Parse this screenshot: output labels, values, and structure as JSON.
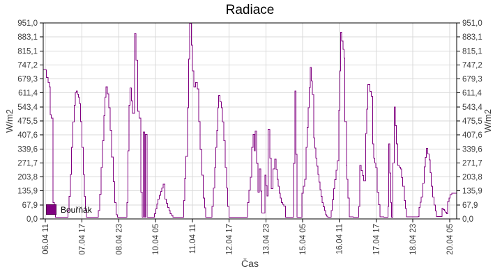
{
  "chart_data": {
    "type": "line",
    "title": "Radiace",
    "xlabel": "Čas",
    "ylabel_left": "W/m2",
    "ylabel_right": "W/m2",
    "line_style": "step",
    "grid": true,
    "colors": {
      "series": "#800080",
      "grid": "#d9d9d9",
      "axis": "#000000",
      "tick_text": "#3c3c3c"
    },
    "y_max": 951.0,
    "y_tick_labels": [
      "0,0",
      "67,9",
      "135,9",
      "203,8",
      "271,7",
      "339,6",
      "407,6",
      "475,5",
      "543,4",
      "611,4",
      "679,3",
      "747,2",
      "815,1",
      "883,1",
      "951,0"
    ],
    "x_range_hours": [
      9.3,
      346.8
    ],
    "x_ticks": [
      {
        "t": 11,
        "label": "06.04 11"
      },
      {
        "t": 41,
        "label": "07.04 17"
      },
      {
        "t": 71,
        "label": "08.04 23"
      },
      {
        "t": 101,
        "label": "10.04 05"
      },
      {
        "t": 131,
        "label": "11.04 11"
      },
      {
        "t": 161,
        "label": "12.04 17"
      },
      {
        "t": 191,
        "label": "13.04 23"
      },
      {
        "t": 221,
        "label": "15.04 05"
      },
      {
        "t": 251,
        "label": "16.04 11"
      },
      {
        "t": 281,
        "label": "17.04 17"
      },
      {
        "t": 311,
        "label": "18.04 23"
      },
      {
        "t": 341,
        "label": "20.04 05"
      }
    ],
    "legend": {
      "position": "bottom-left-inside"
    },
    "series": [
      {
        "name": "Bouřňák",
        "color": "#800080",
        "points": [
          [
            9.3,
            723
          ],
          [
            11.5,
            723
          ],
          [
            12,
            686
          ],
          [
            14.3,
            640
          ],
          [
            15,
            506
          ],
          [
            15.9,
            489
          ],
          [
            17.4,
            80
          ],
          [
            18.3,
            25
          ],
          [
            19.4,
            8
          ],
          [
            28.9,
            8
          ],
          [
            29.4,
            40
          ],
          [
            30.4,
            110
          ],
          [
            31.5,
            215
          ],
          [
            32.4,
            348
          ],
          [
            33.5,
            470
          ],
          [
            34.6,
            551
          ],
          [
            35.5,
            614
          ],
          [
            36.4,
            620
          ],
          [
            38,
            590
          ],
          [
            38.9,
            560
          ],
          [
            39.7,
            472
          ],
          [
            40.8,
            348
          ],
          [
            41.9,
            215
          ],
          [
            43,
            110
          ],
          [
            43.8,
            40
          ],
          [
            44.7,
            8
          ],
          [
            53.8,
            8
          ],
          [
            54.3,
            40
          ],
          [
            55.4,
            120
          ],
          [
            56.5,
            250
          ],
          [
            57.7,
            380
          ],
          [
            58.8,
            500
          ],
          [
            59.7,
            590
          ],
          [
            60.5,
            641
          ],
          [
            61.7,
            607
          ],
          [
            62.8,
            540
          ],
          [
            64,
            430
          ],
          [
            65.1,
            300
          ],
          [
            66.5,
            180
          ],
          [
            67.6,
            80
          ],
          [
            68.8,
            20
          ],
          [
            69.9,
            8
          ],
          [
            77.1,
            8
          ],
          [
            77.6,
            80
          ],
          [
            78.4,
            331
          ],
          [
            79.3,
            551
          ],
          [
            80.3,
            635
          ],
          [
            82.2,
            512
          ],
          [
            83.4,
            512
          ],
          [
            83.9,
            899
          ],
          [
            85.1,
            770
          ],
          [
            86.3,
            523
          ],
          [
            87.5,
            489
          ],
          [
            89,
            129
          ],
          [
            90.1,
            8
          ],
          [
            90.9,
            421
          ],
          [
            92,
            8
          ],
          [
            92.8,
            410
          ],
          [
            94,
            8
          ],
          [
            99.7,
            8
          ],
          [
            100.2,
            25
          ],
          [
            103,
            96
          ],
          [
            107.2,
            169
          ],
          [
            108.7,
            96
          ],
          [
            111,
            56
          ],
          [
            112.9,
            25
          ],
          [
            115.3,
            8
          ],
          [
            123.4,
            8
          ],
          [
            123.9,
            90
          ],
          [
            125.6,
            303
          ],
          [
            127,
            540
          ],
          [
            127.9,
            776
          ],
          [
            128.8,
            949
          ],
          [
            130.2,
            843
          ],
          [
            131.1,
            719
          ],
          [
            132.1,
            641
          ],
          [
            133.6,
            663
          ],
          [
            135,
            630
          ],
          [
            136.1,
            472
          ],
          [
            137.4,
            337
          ],
          [
            138.7,
            213
          ],
          [
            139.9,
            101
          ],
          [
            142,
            8
          ],
          [
            146.5,
            8
          ],
          [
            147,
            60
          ],
          [
            148.2,
            150
          ],
          [
            149.3,
            250
          ],
          [
            150.2,
            348
          ],
          [
            151,
            430
          ],
          [
            151.9,
            540
          ],
          [
            152.4,
            598
          ],
          [
            154.7,
            540
          ],
          [
            155.6,
            470
          ],
          [
            156.7,
            380
          ],
          [
            157.9,
            250
          ],
          [
            159,
            150
          ],
          [
            159.9,
            60
          ],
          [
            161,
            8
          ],
          [
            175.6,
            8
          ],
          [
            176.1,
            79
          ],
          [
            178.4,
            202
          ],
          [
            179.5,
            348
          ],
          [
            180.6,
            410
          ],
          [
            181.8,
            331
          ],
          [
            182.3,
            427
          ],
          [
            183.5,
            270
          ],
          [
            184.6,
            129
          ],
          [
            185.8,
            242
          ],
          [
            187.7,
            28
          ],
          [
            189.8,
            28
          ],
          [
            190.3,
            212
          ],
          [
            192,
            112
          ],
          [
            192.9,
            433
          ],
          [
            194.3,
            295
          ],
          [
            195.4,
            146
          ],
          [
            196.9,
            242
          ],
          [
            198.3,
            290
          ],
          [
            200.3,
            192
          ],
          [
            202,
            124
          ],
          [
            203.7,
            79
          ],
          [
            205.7,
            62
          ],
          [
            207.1,
            8
          ],
          [
            213.2,
            8
          ],
          [
            213.7,
            270
          ],
          [
            214.8,
            620
          ],
          [
            216.6,
            8
          ],
          [
            220,
            8
          ],
          [
            220.5,
            124
          ],
          [
            222.8,
            192
          ],
          [
            223.9,
            348
          ],
          [
            225.6,
            540
          ],
          [
            227.3,
            736
          ],
          [
            229,
            604
          ],
          [
            230.2,
            393
          ],
          [
            231.9,
            295
          ],
          [
            233.6,
            216
          ],
          [
            235.3,
            141
          ],
          [
            237,
            79
          ],
          [
            239.8,
            20
          ],
          [
            241.6,
            8
          ],
          [
            243.9,
            8
          ],
          [
            244.4,
            40
          ],
          [
            246.3,
            146
          ],
          [
            249.2,
            281
          ],
          [
            250.5,
            527
          ],
          [
            251.5,
            719
          ],
          [
            252.1,
            905
          ],
          [
            254.9,
            781
          ],
          [
            255.5,
            472
          ],
          [
            256.8,
            259
          ],
          [
            257.1,
            192
          ],
          [
            259.2,
            10
          ],
          [
            266.3,
            8
          ],
          [
            266.8,
            60
          ],
          [
            267.7,
            259
          ],
          [
            270.9,
            186
          ],
          [
            272.4,
            415
          ],
          [
            274.3,
            652
          ],
          [
            275.8,
            618
          ],
          [
            277.2,
            595
          ],
          [
            278.1,
            365
          ],
          [
            279.2,
            295
          ],
          [
            280.8,
            248
          ],
          [
            281.9,
            129
          ],
          [
            284.2,
            10
          ],
          [
            290.3,
            8
          ],
          [
            290.8,
            60
          ],
          [
            291.4,
            365
          ],
          [
            293.1,
            79
          ],
          [
            293.6,
            8
          ],
          [
            294.8,
            272
          ],
          [
            295.9,
            543
          ],
          [
            297.6,
            365
          ],
          [
            298.8,
            259
          ],
          [
            301,
            242
          ],
          [
            302.7,
            158
          ],
          [
            304.2,
            90
          ],
          [
            305.9,
            10
          ],
          [
            315.6,
            11
          ],
          [
            316.1,
            56
          ],
          [
            317.8,
            107
          ],
          [
            319.2,
            174
          ],
          [
            320.4,
            253
          ],
          [
            321.2,
            298
          ],
          [
            322.1,
            343
          ],
          [
            324.4,
            287
          ],
          [
            325.2,
            225
          ],
          [
            326.1,
            158
          ],
          [
            327.2,
            107
          ],
          [
            328.3,
            67
          ],
          [
            329.5,
            39
          ],
          [
            330.3,
            11
          ],
          [
            334.3,
            11
          ],
          [
            334.9,
            53
          ],
          [
            338.6,
            25
          ],
          [
            339.4,
            84
          ],
          [
            341.4,
            118
          ],
          [
            342.9,
            124
          ],
          [
            346.8,
            124
          ]
        ]
      }
    ]
  }
}
